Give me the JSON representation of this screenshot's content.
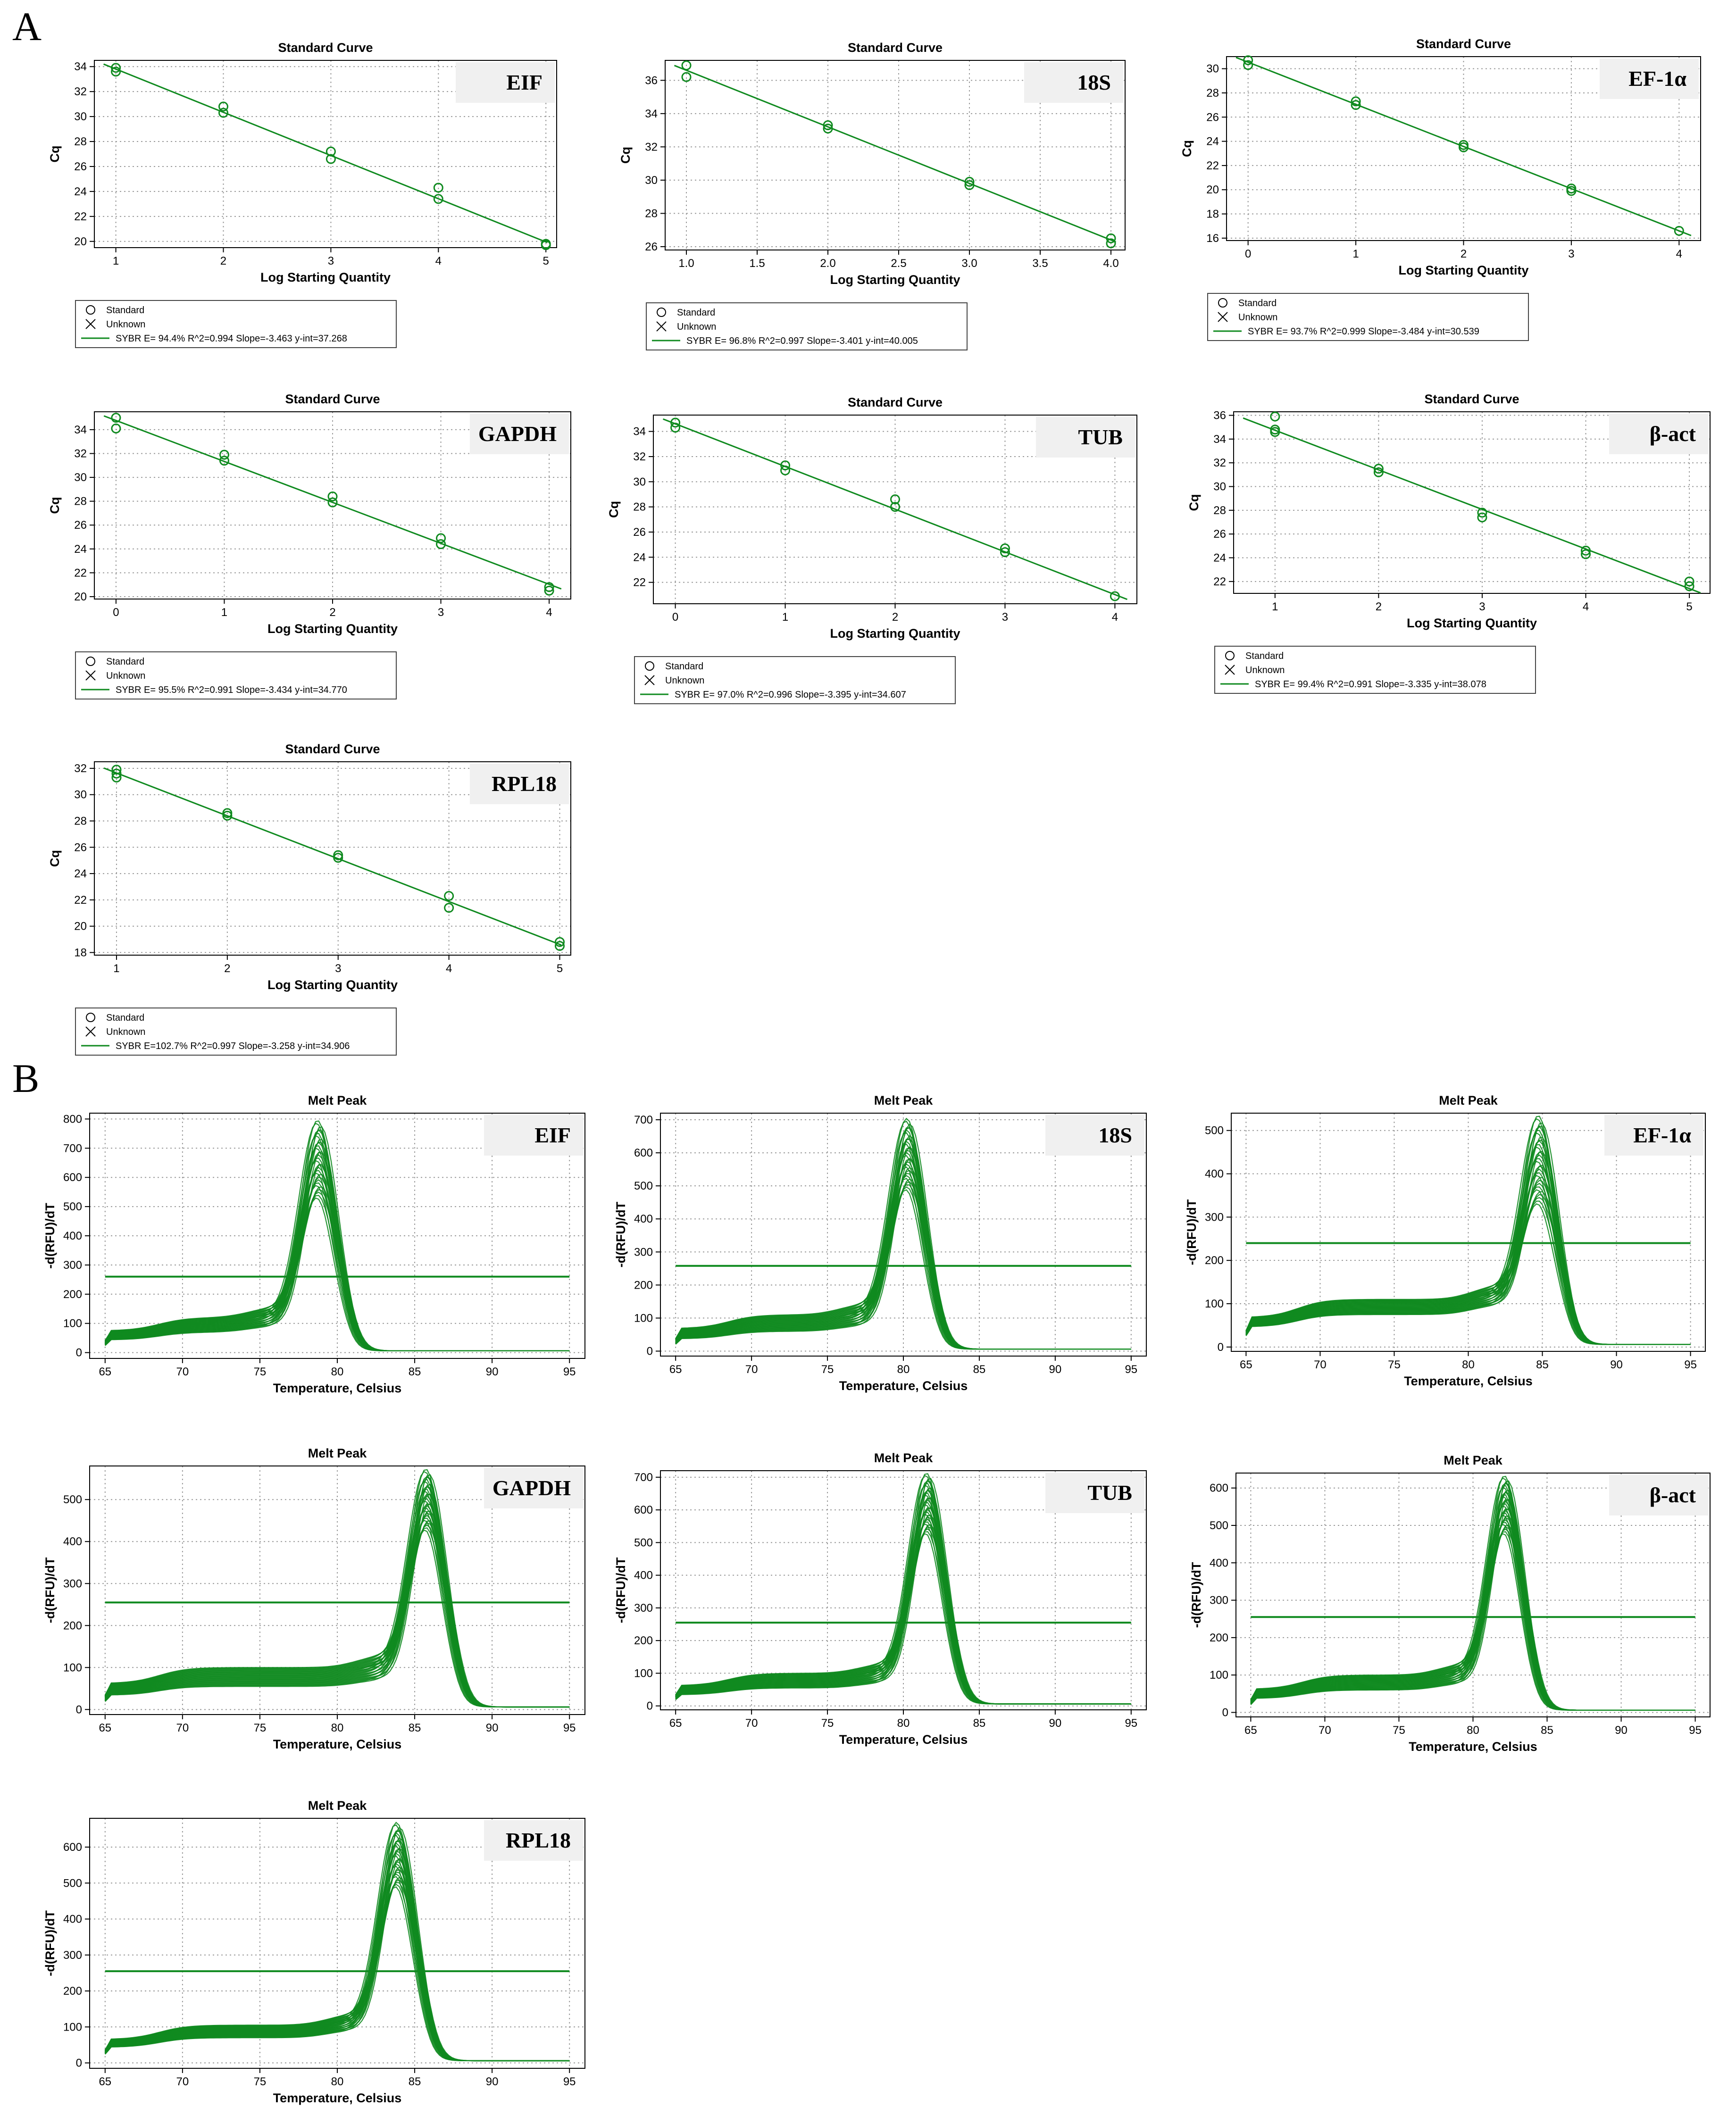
{
  "figure": {
    "panels": [
      {
        "letter": "A"
      },
      {
        "letter": "B"
      }
    ]
  },
  "chart_data": [
    {
      "type": "scatter",
      "panel": "A",
      "title": "Standard Curve",
      "gene": "EIF",
      "xlabel": "Log Starting Quantity",
      "ylabel": "Cq",
      "xlim": [
        0.8,
        5.1
      ],
      "ylim": [
        19.5,
        34.5
      ],
      "xticks": [
        1,
        2,
        3,
        4,
        5
      ],
      "xtick_labels": [
        "1",
        "2",
        "3",
        "4",
        "5"
      ],
      "yticks": [
        20,
        22,
        24,
        26,
        28,
        30,
        32,
        34
      ],
      "points": [
        [
          1,
          33.9
        ],
        [
          1,
          33.6
        ],
        [
          2,
          30.8
        ],
        [
          2,
          30.3
        ],
        [
          3,
          27.2
        ],
        [
          3,
          26.6
        ],
        [
          4,
          24.3
        ],
        [
          4,
          23.4
        ],
        [
          5,
          19.8
        ],
        [
          5,
          19.7
        ]
      ],
      "fit": {
        "slope": -3.463,
        "intercept": 37.268
      },
      "legend": [
        "Standard",
        "Unknown",
        "SYBR  E= 94.4% R^2=0.994 Slope=-3.463 y-int=37.268"
      ]
    },
    {
      "type": "scatter",
      "panel": "A",
      "title": "Standard Curve",
      "gene": "18S",
      "xlabel": "Log Starting Quantity",
      "ylabel": "Cq",
      "xlim": [
        0.85,
        4.1
      ],
      "ylim": [
        25.8,
        37.2
      ],
      "xticks": [
        1,
        1.5,
        2,
        2.5,
        3,
        3.5,
        4
      ],
      "xtick_labels": [
        "1.0",
        "1.5",
        "2.0",
        "2.5",
        "3.0",
        "3.5",
        "4.0"
      ],
      "yticks": [
        26,
        28,
        30,
        32,
        34,
        36
      ],
      "points": [
        [
          1,
          36.9
        ],
        [
          1,
          36.2
        ],
        [
          2,
          33.3
        ],
        [
          2,
          33.1
        ],
        [
          3,
          29.9
        ],
        [
          3,
          29.7
        ],
        [
          4,
          26.5
        ],
        [
          4,
          26.2
        ]
      ],
      "fit": {
        "slope": -3.401,
        "intercept": 40.005
      },
      "legend": [
        "Standard",
        "Unknown",
        "SYBR  E= 96.8% R^2=0.997 Slope=-3.401 y-int=40.005"
      ]
    },
    {
      "type": "scatter",
      "panel": "A",
      "title": "Standard Curve",
      "gene": "EF-1α",
      "xlabel": "Log Starting Quantity",
      "ylabel": "Cq",
      "xlim": [
        -0.2,
        4.2
      ],
      "ylim": [
        15.8,
        31
      ],
      "xticks": [
        0,
        1,
        2,
        3,
        4
      ],
      "xtick_labels": [
        "0",
        "1",
        "2",
        "3",
        "4"
      ],
      "yticks": [
        16,
        18,
        20,
        22,
        24,
        26,
        28,
        30
      ],
      "points": [
        [
          0,
          30.7
        ],
        [
          0,
          30.3
        ],
        [
          1,
          27.3
        ],
        [
          1,
          27.0
        ],
        [
          2,
          23.7
        ],
        [
          2,
          23.5
        ],
        [
          3,
          20.1
        ],
        [
          3,
          19.9
        ],
        [
          4,
          16.6
        ]
      ],
      "fit": {
        "slope": -3.484,
        "intercept": 30.539
      },
      "legend": [
        "Standard",
        "Unknown",
        "SYBR  E= 93.7% R^2=0.999 Slope=-3.484 y-int=30.539"
      ]
    },
    {
      "type": "scatter",
      "panel": "A",
      "title": "Standard Curve",
      "gene": "GAPDH",
      "xlabel": "Log Starting Quantity",
      "ylabel": "Cq",
      "xlim": [
        -0.2,
        4.2
      ],
      "ylim": [
        19.8,
        35.5
      ],
      "xticks": [
        0,
        1,
        2,
        3,
        4
      ],
      "xtick_labels": [
        "0",
        "1",
        "2",
        "3",
        "4"
      ],
      "yticks": [
        20,
        22,
        24,
        26,
        28,
        30,
        32,
        34
      ],
      "points": [
        [
          0,
          35.0
        ],
        [
          0,
          34.1
        ],
        [
          1,
          31.9
        ],
        [
          1,
          31.4
        ],
        [
          2,
          28.4
        ],
        [
          2,
          27.9
        ],
        [
          3,
          24.9
        ],
        [
          3,
          24.4
        ],
        [
          4,
          20.8
        ],
        [
          4,
          20.5
        ]
      ],
      "fit": {
        "slope": -3.434,
        "intercept": 34.77
      },
      "legend": [
        "Standard",
        "Unknown",
        "SYBR  E= 95.5% R^2=0.991 Slope=-3.434 y-int=34.770"
      ]
    },
    {
      "type": "scatter",
      "panel": "A",
      "title": "Standard Curve",
      "gene": "TUB",
      "xlabel": "Log Starting Quantity",
      "ylabel": "Cq",
      "xlim": [
        -0.2,
        4.2
      ],
      "ylim": [
        20.3,
        35.3
      ],
      "xticks": [
        0,
        1,
        2,
        3,
        4
      ],
      "xtick_labels": [
        "0",
        "1",
        "2",
        "3",
        "4"
      ],
      "yticks": [
        22,
        24,
        26,
        28,
        30,
        32,
        34
      ],
      "points": [
        [
          0,
          34.7
        ],
        [
          0,
          34.3
        ],
        [
          1,
          31.3
        ],
        [
          1,
          30.9
        ],
        [
          2,
          28.6
        ],
        [
          2,
          28.0
        ],
        [
          3,
          24.7
        ],
        [
          3,
          24.4
        ],
        [
          4,
          20.9
        ]
      ],
      "fit": {
        "slope": -3.395,
        "intercept": 34.607
      },
      "legend": [
        "Standard",
        "Unknown",
        "SYBR  E= 97.0% R^2=0.996 Slope=-3.395 y-int=34.607"
      ]
    },
    {
      "type": "scatter",
      "panel": "A",
      "title": "Standard Curve",
      "gene": "β-act",
      "xlabel": "Log Starting Quantity",
      "ylabel": "Cq",
      "xlim": [
        0.6,
        5.2
      ],
      "ylim": [
        21,
        36.3
      ],
      "xticks": [
        1,
        2,
        3,
        4,
        5
      ],
      "xtick_labels": [
        "1",
        "2",
        "3",
        "4",
        "5"
      ],
      "yticks": [
        22,
        24,
        26,
        28,
        30,
        32,
        34,
        36
      ],
      "points": [
        [
          1,
          35.9
        ],
        [
          1,
          34.8
        ],
        [
          1,
          34.6
        ],
        [
          2,
          31.5
        ],
        [
          2,
          31.2
        ],
        [
          3,
          27.8
        ],
        [
          3,
          27.4
        ],
        [
          4,
          24.6
        ],
        [
          4,
          24.3
        ],
        [
          5,
          22.0
        ],
        [
          5,
          21.6
        ]
      ],
      "fit": {
        "slope": -3.335,
        "intercept": 38.078
      },
      "legend": [
        "Standard",
        "Unknown",
        "SYBR  E= 99.4% R^2=0.991 Slope=-3.335 y-int=38.078"
      ]
    },
    {
      "type": "scatter",
      "panel": "A",
      "title": "Standard Curve",
      "gene": "RPL18",
      "xlabel": "Log Starting Quantity",
      "ylabel": "Cq",
      "xlim": [
        0.8,
        5.1
      ],
      "ylim": [
        17.8,
        32.5
      ],
      "xticks": [
        1,
        2,
        3,
        4,
        5
      ],
      "xtick_labels": [
        "1",
        "2",
        "3",
        "4",
        "5"
      ],
      "yticks": [
        18,
        20,
        22,
        24,
        26,
        28,
        30,
        32
      ],
      "points": [
        [
          1,
          31.9
        ],
        [
          1,
          31.6
        ],
        [
          1,
          31.3
        ],
        [
          2,
          28.6
        ],
        [
          2,
          28.4
        ],
        [
          3,
          25.4
        ],
        [
          3,
          25.2
        ],
        [
          4,
          22.3
        ],
        [
          4,
          21.4
        ],
        [
          5,
          18.8
        ],
        [
          5,
          18.5
        ]
      ],
      "fit": {
        "slope": -3.258,
        "intercept": 34.906
      },
      "legend": [
        "Standard",
        "Unknown",
        "SYBR  E=102.7% R^2=0.997 Slope=-3.258 y-int=34.906"
      ]
    },
    {
      "type": "line",
      "panel": "B",
      "title": "Melt Peak",
      "gene": "EIF",
      "xlabel": "Temperature, Celsius",
      "ylabel": "-d(RFU)/dT",
      "xlim": [
        64,
        96
      ],
      "ylim": [
        -20,
        820
      ],
      "xticks": [
        65,
        70,
        75,
        80,
        85,
        90,
        95
      ],
      "yticks": [
        0,
        100,
        200,
        300,
        400,
        500,
        600,
        700,
        800
      ],
      "peak_temp": 78.8,
      "peak_min": 520,
      "peak_max": 780,
      "baseline": [
        70,
        120
      ],
      "threshold": 260
    },
    {
      "type": "line",
      "panel": "B",
      "title": "Melt Peak",
      "gene": "18S",
      "xlabel": "Temperature, Celsius",
      "ylabel": "-d(RFU)/dT",
      "xlim": [
        64,
        96
      ],
      "ylim": [
        -15,
        720
      ],
      "xticks": [
        65,
        70,
        75,
        80,
        85,
        90,
        95
      ],
      "yticks": [
        0,
        100,
        200,
        300,
        400,
        500,
        600,
        700
      ],
      "peak_temp": 80.3,
      "peak_min": 480,
      "peak_max": 690,
      "baseline": [
        60,
        110
      ],
      "threshold": 258
    },
    {
      "type": "line",
      "panel": "B",
      "title": "Melt Peak",
      "gene": "EF-1α",
      "xlabel": "Temperature, Celsius",
      "ylabel": "-d(RFU)/dT",
      "xlim": [
        64,
        96
      ],
      "ylim": [
        -10,
        540
      ],
      "xticks": [
        65,
        70,
        75,
        80,
        85,
        90,
        95
      ],
      "yticks": [
        0,
        100,
        200,
        300,
        400,
        500
      ],
      "peak_temp": 84.8,
      "peak_min": 320,
      "peak_max": 520,
      "baseline": [
        75,
        110
      ],
      "threshold": 240
    },
    {
      "type": "line",
      "panel": "B",
      "title": "Melt Peak",
      "gene": "GAPDH",
      "xlabel": "Temperature, Celsius",
      "ylabel": "-d(RFU)/dT",
      "xlim": [
        64,
        96
      ],
      "ylim": [
        -12,
        580
      ],
      "xticks": [
        65,
        70,
        75,
        80,
        85,
        90,
        95
      ],
      "yticks": [
        0,
        100,
        200,
        300,
        400,
        500
      ],
      "peak_temp": 85.8,
      "peak_min": 420,
      "peak_max": 560,
      "baseline": [
        55,
        100
      ],
      "threshold": 255
    },
    {
      "type": "line",
      "panel": "B",
      "title": "Melt Peak",
      "gene": "TUB",
      "xlabel": "Temperature, Celsius",
      "ylabel": "-d(RFU)/dT",
      "xlim": [
        64,
        96
      ],
      "ylim": [
        -12,
        720
      ],
      "xticks": [
        65,
        70,
        75,
        80,
        85,
        90,
        95
      ],
      "yticks": [
        0,
        100,
        200,
        300,
        400,
        500,
        600,
        700
      ],
      "peak_temp": 81.6,
      "peak_min": 520,
      "peak_max": 700,
      "baseline": [
        55,
        100
      ],
      "threshold": 255
    },
    {
      "type": "line",
      "panel": "B",
      "title": "Melt Peak",
      "gene": "β-act",
      "xlabel": "Temperature, Celsius",
      "ylabel": "-d(RFU)/dT",
      "xlim": [
        64,
        96
      ],
      "ylim": [
        -12,
        640
      ],
      "xticks": [
        65,
        70,
        75,
        80,
        85,
        90,
        95
      ],
      "yticks": [
        0,
        100,
        200,
        300,
        400,
        500,
        600
      ],
      "peak_temp": 82.2,
      "peak_min": 470,
      "peak_max": 620,
      "baseline": [
        60,
        100
      ],
      "threshold": 255
    },
    {
      "type": "line",
      "panel": "B",
      "title": "Melt Peak",
      "gene": "RPL18",
      "xlabel": "Temperature, Celsius",
      "ylabel": "-d(RFU)/dT",
      "xlim": [
        64,
        96
      ],
      "ylim": [
        -15,
        680
      ],
      "xticks": [
        65,
        70,
        75,
        80,
        85,
        90,
        95
      ],
      "yticks": [
        0,
        100,
        200,
        300,
        400,
        500,
        600
      ],
      "peak_temp": 83.9,
      "peak_min": 480,
      "peak_max": 655,
      "baseline": [
        70,
        105
      ],
      "threshold": 255
    }
  ],
  "colors": {
    "series": "#0f8a1f",
    "grid": "#9a9a9a",
    "axis": "#000000",
    "gene_box": "#f0f0f0"
  }
}
